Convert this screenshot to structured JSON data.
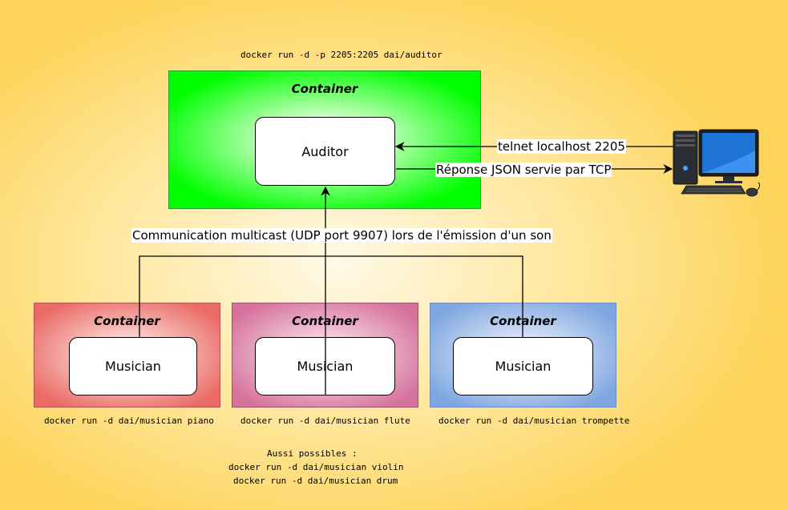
{
  "commands": {
    "auditor": "docker run -d -p 2205:2205 dai/auditor",
    "piano": "docker run -d dai/musician piano",
    "flute": "docker run -d dai/musician flute",
    "trompette": "docker run -d dai/musician trompette",
    "extra_title": "Aussi possibles :",
    "violin": "docker run -d dai/musician violin",
    "drum": "docker run -d dai/musician drum"
  },
  "auditor_container": {
    "title": "Container",
    "node": "Auditor",
    "color": "#00ff00"
  },
  "musician_containers": [
    {
      "title": "Container",
      "node": "Musician",
      "color": "#ea6b66"
    },
    {
      "title": "Container",
      "node": "Musician",
      "color": "#d5739d"
    },
    {
      "title": "Container",
      "node": "Musician",
      "color": "#7ea6e0"
    }
  ],
  "edges": {
    "telnet": "telnet localhost 2205",
    "response": "Réponse JSON servie par TCP",
    "multicast": "Communication multicast (UDP port 9907) lors de l'émission d'un son"
  },
  "icons": {
    "computer": "desktop-computer-icon"
  }
}
